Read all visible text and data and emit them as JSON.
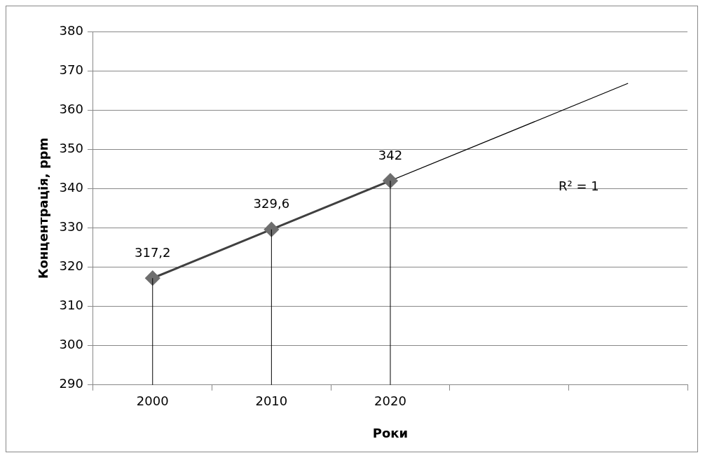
{
  "chart_data": {
    "type": "line",
    "xlabel": "Роки",
    "ylabel": "Концентрація, ppm",
    "categories": [
      "2000",
      "2010",
      "2020",
      null,
      null
    ],
    "series": [
      {
        "color": "#404040",
        "values": [
          317.2,
          329.6,
          342,
          null,
          null
        ],
        "marker": "diamond",
        "errors": [
          [
            290,
            317.2
          ],
          [
            290,
            329.6
          ],
          [
            290,
            342
          ],
          null,
          null
        ],
        "value_labels": [
          "317,2",
          "329,6",
          "342",
          null,
          null
        ]
      },
      {
        "color": "#000000",
        "values": [
          317.2,
          329.6,
          342,
          354.4,
          366.8
        ],
        "marker": "none"
      }
    ],
    "ylim": [
      290,
      380
    ],
    "yticks": [
      290,
      300,
      310,
      320,
      330,
      340,
      350,
      360,
      370,
      380
    ],
    "grid": "y",
    "legend": false,
    "annotations": [
      "R² = 1"
    ]
  }
}
